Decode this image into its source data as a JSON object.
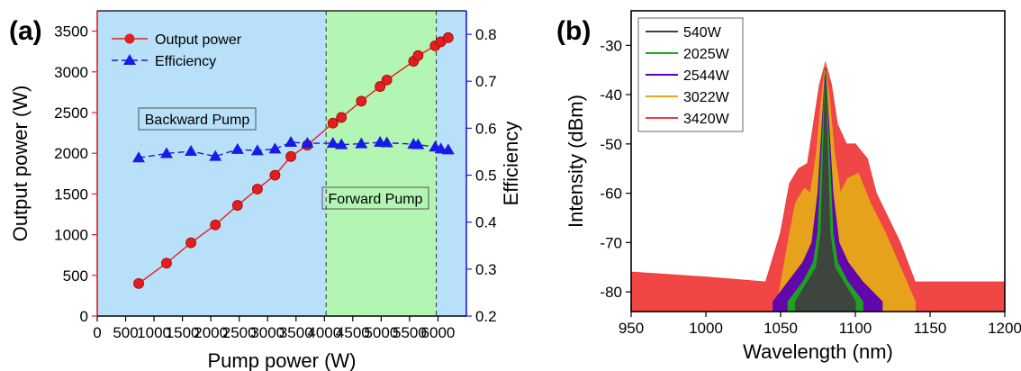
{
  "chart_data": [
    {
      "panel_label": "(a)",
      "type": "line",
      "xlabel": "Pump power (W)",
      "ylabel": "Output power (W)",
      "y2label": "Efficiency",
      "xlim": [
        0,
        6500
      ],
      "ylim": [
        0,
        3750
      ],
      "y2lim": [
        0.2,
        0.85
      ],
      "xticks": [
        0,
        500,
        1000,
        1500,
        2000,
        2500,
        3000,
        3500,
        4000,
        4500,
        5000,
        5500,
        6000
      ],
      "yticks": [
        0,
        500,
        1000,
        1500,
        2000,
        2500,
        3000,
        3500
      ],
      "y2ticks": [
        0.2,
        0.3,
        0.4,
        0.5,
        0.6,
        0.7,
        0.8
      ],
      "regions": [
        {
          "label": "Backward Pump",
          "x_range": [
            0,
            4030
          ],
          "color": "#b8e0f8"
        },
        {
          "label": "Forward Pump",
          "x_range": [
            4030,
            5970
          ],
          "color": "#b3f5b3"
        },
        {
          "label": "",
          "x_range": [
            5970,
            6500
          ],
          "color": "#b8e0f8"
        }
      ],
      "legend_position": "top-left",
      "series": [
        {
          "name": "Output power",
          "axis": "left",
          "color": "#e02020",
          "marker": "circle",
          "x": [
            730,
            1220,
            1650,
            2080,
            2470,
            2820,
            3130,
            3410,
            3700,
            4150,
            4300,
            4650,
            4980,
            5100,
            5570,
            5650,
            5950,
            6050,
            6180
          ],
          "y": [
            400,
            650,
            900,
            1120,
            1360,
            1560,
            1730,
            1960,
            2100,
            2370,
            2440,
            2640,
            2820,
            2900,
            3130,
            3200,
            3320,
            3370,
            3420
          ]
        },
        {
          "name": "Efficiency",
          "axis": "right",
          "color": "#1a1ae6",
          "marker": "triangle",
          "x": [
            730,
            1220,
            1650,
            2080,
            2470,
            2820,
            3130,
            3410,
            3700,
            4150,
            4300,
            4650,
            4980,
            5100,
            5570,
            5650,
            5950,
            6050,
            6180
          ],
          "y": [
            0.537,
            0.546,
            0.551,
            0.54,
            0.555,
            0.552,
            0.556,
            0.57,
            0.568,
            0.568,
            0.565,
            0.567,
            0.57,
            0.569,
            0.566,
            0.565,
            0.56,
            0.556,
            0.554
          ]
        }
      ]
    },
    {
      "panel_label": "(b)",
      "type": "line",
      "xlabel": "Wavelength (nm)",
      "ylabel": "Intensity (dBm)",
      "xlim": [
        950,
        1200
      ],
      "ylim": [
        -84,
        -23
      ],
      "xticks": [
        950,
        1000,
        1050,
        1100,
        1150,
        1200
      ],
      "yticks": [
        -30,
        -40,
        -50,
        -60,
        -70,
        -80
      ],
      "legend_position": "top-left",
      "series": [
        {
          "name": "540W",
          "color": "#404040",
          "x": [
            1060,
            1068,
            1074,
            1077,
            1079,
            1080,
            1081,
            1083,
            1086,
            1092,
            1100
          ],
          "y": [
            -82,
            -78,
            -75,
            -68,
            -48,
            -36,
            -48,
            -68,
            -75,
            -78,
            -82
          ]
        },
        {
          "name": "2025W",
          "color": "#1aaa1a",
          "x": [
            1055,
            1065,
            1072,
            1075,
            1077,
            1079,
            1080,
            1081,
            1083,
            1085,
            1088,
            1095,
            1105
          ],
          "y": [
            -82,
            -78,
            -74,
            -68,
            -55,
            -42,
            -35,
            -42,
            -55,
            -68,
            -74,
            -78,
            -82
          ]
        },
        {
          "name": "2544W",
          "color": "#5a00b4",
          "x": [
            1045,
            1055,
            1065,
            1071,
            1075,
            1078,
            1080,
            1082,
            1085,
            1089,
            1095,
            1105,
            1118
          ],
          "y": [
            -82,
            -78,
            -74,
            -70,
            -60,
            -45,
            -34.5,
            -45,
            -60,
            -70,
            -74,
            -78,
            -82
          ]
        },
        {
          "name": "3022W",
          "color": "#e6a81a",
          "x": [
            1048,
            1055,
            1060,
            1066,
            1070,
            1074,
            1077,
            1080,
            1083,
            1086,
            1090,
            1095,
            1102,
            1110,
            1120,
            1130,
            1140
          ],
          "y": [
            -82,
            -70,
            -62,
            -59,
            -60,
            -52,
            -42,
            -34,
            -42,
            -52,
            -60,
            -57,
            -56,
            -62,
            -68,
            -75,
            -82
          ]
        },
        {
          "name": "3420W",
          "color": "#f03c3c",
          "x": [
            950,
            1000,
            1040,
            1050,
            1056,
            1062,
            1068,
            1072,
            1076,
            1080,
            1084,
            1088,
            1094,
            1100,
            1108,
            1114,
            1122,
            1130,
            1140,
            1160,
            1200
          ],
          "y": [
            -76,
            -77,
            -78,
            -68,
            -58,
            -55,
            -54,
            -46,
            -38,
            -33.5,
            -38,
            -46,
            -50,
            -50,
            -53,
            -60,
            -65,
            -70,
            -78,
            -78,
            -78
          ]
        }
      ]
    }
  ]
}
